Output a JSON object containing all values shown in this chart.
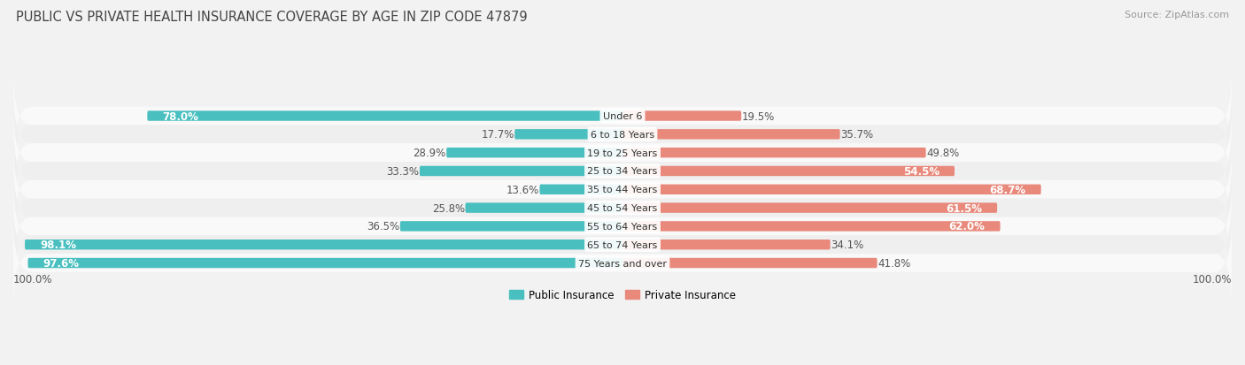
{
  "title": "Public vs Private Health Insurance Coverage by Age in Zip Code 47879",
  "source": "Source: ZipAtlas.com",
  "categories": [
    "Under 6",
    "6 to 18 Years",
    "19 to 25 Years",
    "25 to 34 Years",
    "35 to 44 Years",
    "45 to 54 Years",
    "55 to 64 Years",
    "65 to 74 Years",
    "75 Years and over"
  ],
  "public_values": [
    78.0,
    17.7,
    28.9,
    33.3,
    13.6,
    25.8,
    36.5,
    98.1,
    97.6
  ],
  "private_values": [
    19.5,
    35.7,
    49.8,
    54.5,
    68.7,
    61.5,
    62.0,
    34.1,
    41.8
  ],
  "public_color": "#49BFBF",
  "private_color": "#E8897C",
  "private_color_light": "#F0AFA6",
  "bg_color": "#f2f2f2",
  "row_color_odd": "#f9f9f9",
  "row_color_even": "#efefef",
  "xlim_left": -100,
  "xlim_right": 100,
  "title_fontsize": 10.5,
  "label_fontsize": 8.5,
  "category_fontsize": 8,
  "legend_fontsize": 8.5,
  "source_fontsize": 8,
  "axis_labels": "100.0%"
}
